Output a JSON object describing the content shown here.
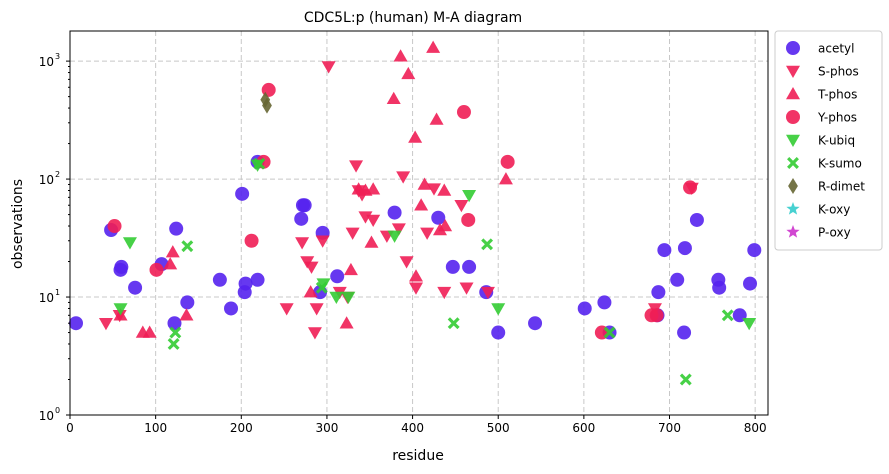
{
  "chart_data": {
    "type": "scatter",
    "title": "CDC5L:p (human) M-A diagram",
    "xlabel": "residue",
    "ylabel": "observations",
    "xlim": [
      0,
      815
    ],
    "ylim": [
      1,
      1800
    ],
    "yscale": "log",
    "xticks": [
      0,
      100,
      200,
      300,
      400,
      500,
      600,
      700,
      800
    ],
    "xtick_labels": [
      "0",
      "100",
      "200",
      "300",
      "400",
      "500",
      "600",
      "700",
      "800"
    ],
    "yticks": [
      1,
      10,
      100,
      1000
    ],
    "ytick_labels": [
      "10",
      "10",
      "10",
      "10"
    ],
    "ytick_exponents": [
      "0",
      "1",
      "2",
      "3"
    ],
    "grid": true,
    "legend_position": "outside-right",
    "series": [
      {
        "name": "acetyl",
        "marker": "circle",
        "color": "#5522ee",
        "points": [
          [
            7,
            6
          ],
          [
            48,
            37
          ],
          [
            59,
            17
          ],
          [
            60,
            18
          ],
          [
            76,
            12
          ],
          [
            107,
            19
          ],
          [
            122,
            6
          ],
          [
            124,
            38
          ],
          [
            137,
            9
          ],
          [
            175,
            14
          ],
          [
            188,
            8
          ],
          [
            201,
            75
          ],
          [
            204,
            11
          ],
          [
            205,
            13
          ],
          [
            219,
            14
          ],
          [
            219,
            140
          ],
          [
            270,
            46
          ],
          [
            272,
            60
          ],
          [
            274,
            60
          ],
          [
            292,
            11
          ],
          [
            295,
            35
          ],
          [
            312,
            15
          ],
          [
            379,
            52
          ],
          [
            430,
            47
          ],
          [
            447,
            18
          ],
          [
            466,
            18
          ],
          [
            486,
            11
          ],
          [
            500,
            5
          ],
          [
            543,
            6
          ],
          [
            601,
            8
          ],
          [
            624,
            9
          ],
          [
            630,
            5
          ],
          [
            686,
            7
          ],
          [
            687,
            11
          ],
          [
            694,
            25
          ],
          [
            709,
            14
          ],
          [
            717,
            5
          ],
          [
            718,
            26
          ],
          [
            732,
            45
          ],
          [
            757,
            14
          ],
          [
            758,
            12
          ],
          [
            782,
            7
          ],
          [
            794,
            13
          ],
          [
            799,
            25
          ]
        ]
      },
      {
        "name": "S-phos",
        "marker": "triangle-down",
        "color": "#f01e55",
        "points": [
          [
            42,
            6
          ],
          [
            58,
            7
          ],
          [
            253,
            8
          ],
          [
            271,
            29
          ],
          [
            277,
            20
          ],
          [
            282,
            18
          ],
          [
            286,
            5
          ],
          [
            288,
            8
          ],
          [
            295,
            30
          ],
          [
            302,
            900
          ],
          [
            315,
            11
          ],
          [
            324,
            10
          ],
          [
            330,
            35
          ],
          [
            334,
            130
          ],
          [
            337,
            80
          ],
          [
            341,
            74
          ],
          [
            345,
            48
          ],
          [
            354,
            45
          ],
          [
            370,
            33
          ],
          [
            384,
            38
          ],
          [
            389,
            105
          ],
          [
            393,
            20
          ],
          [
            404,
            12
          ],
          [
            417,
            35
          ],
          [
            425,
            83
          ],
          [
            437,
            11
          ],
          [
            457,
            60
          ],
          [
            463,
            12
          ],
          [
            488,
            11
          ],
          [
            683,
            8
          ],
          [
            726,
            84
          ]
        ]
      },
      {
        "name": "T-phos",
        "marker": "triangle-up",
        "color": "#f01e55",
        "points": [
          [
            59,
            7
          ],
          [
            85,
            5
          ],
          [
            93,
            5
          ],
          [
            117,
            19
          ],
          [
            120,
            24
          ],
          [
            136,
            7
          ],
          [
            281,
            11
          ],
          [
            323,
            6
          ],
          [
            328,
            17
          ],
          [
            337,
            82
          ],
          [
            345,
            80
          ],
          [
            352,
            29
          ],
          [
            354,
            82
          ],
          [
            378,
            480
          ],
          [
            386,
            1100
          ],
          [
            395,
            780
          ],
          [
            403,
            225
          ],
          [
            404,
            15
          ],
          [
            410,
            60
          ],
          [
            414,
            90
          ],
          [
            424,
            1300
          ],
          [
            428,
            320
          ],
          [
            432,
            37
          ],
          [
            437,
            80
          ],
          [
            438,
            40
          ],
          [
            509,
            100
          ]
        ]
      },
      {
        "name": "Y-phos",
        "marker": "circle",
        "color": "#f01e55",
        "points": [
          [
            52,
            40
          ],
          [
            101,
            17
          ],
          [
            212,
            30
          ],
          [
            226,
            140
          ],
          [
            232,
            570
          ],
          [
            460,
            370
          ],
          [
            465,
            45
          ],
          [
            511,
            140
          ],
          [
            621,
            5
          ],
          [
            679,
            7
          ],
          [
            685,
            7
          ],
          [
            724,
            85
          ]
        ]
      },
      {
        "name": "K-ubiq",
        "marker": "triangle-down",
        "color": "#33cc33",
        "points": [
          [
            59,
            8
          ],
          [
            70,
            29
          ],
          [
            219,
            132
          ],
          [
            296,
            13
          ],
          [
            311,
            10
          ],
          [
            325,
            10
          ],
          [
            379,
            33
          ],
          [
            466,
            73
          ],
          [
            500,
            8
          ],
          [
            793,
            6
          ]
        ]
      },
      {
        "name": "K-sumo",
        "marker": "x",
        "color": "#33cc33",
        "points": [
          [
            121,
            4
          ],
          [
            123,
            5
          ],
          [
            137,
            27
          ],
          [
            221,
            135
          ],
          [
            294,
            12
          ],
          [
            448,
            6
          ],
          [
            487,
            28
          ],
          [
            630,
            5
          ],
          [
            719,
            2
          ],
          [
            768,
            7
          ]
        ]
      },
      {
        "name": "R-dimet",
        "marker": "diamond",
        "color": "#666633",
        "points": [
          [
            228,
            470
          ],
          [
            230,
            420
          ]
        ]
      },
      {
        "name": "K-oxy",
        "marker": "star",
        "color": "#33cccc",
        "points": []
      },
      {
        "name": "P-oxy",
        "marker": "star",
        "color": "#cc33cc",
        "points": []
      }
    ]
  }
}
